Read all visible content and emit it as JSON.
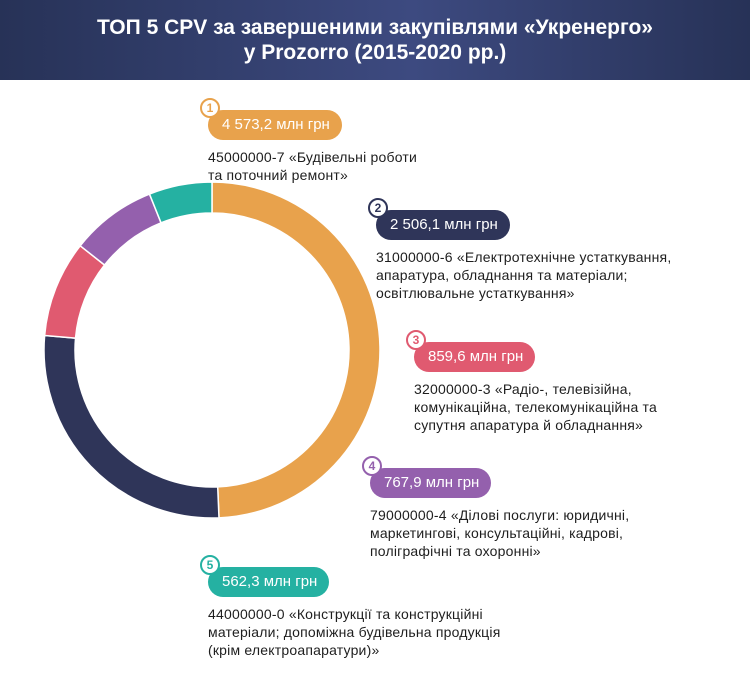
{
  "header": {
    "line1": "ТОП 5 CPV за завершеними закупівлями «Укренерго»",
    "line2": "у Prozorro (2015-2020 рр.)"
  },
  "chart_data": {
    "type": "pie",
    "variant": "donut",
    "title": "ТОП 5 CPV за завершеними закупівлями «Укренерго» у Prozorro (2015-2020 рр.)",
    "unit": "млн грн",
    "categories": [
      "1",
      "2",
      "3",
      "4",
      "5"
    ],
    "values": [
      4573.2,
      2506.1,
      859.6,
      767.9,
      562.3
    ],
    "colors": [
      "#e8a24c",
      "#2f3559",
      "#e05a70",
      "#9460ad",
      "#25b1a2"
    ]
  },
  "entries": [
    {
      "num": "1",
      "value": "4 573,2 млн грн",
      "desc_lines": [
        "45000000-7 «Будівельні роботи",
        "та поточний ремонт»"
      ],
      "color": "#e8a24c"
    },
    {
      "num": "2",
      "value": "2 506,1 млн грн",
      "desc_lines": [
        "31000000-6 «Електротехнічне устаткування,",
        "апаратура, обладнання та матеріали;",
        "освітлювальне устаткування»"
      ],
      "color": "#2f3559"
    },
    {
      "num": "3",
      "value": "859,6 млн грн",
      "desc_lines": [
        "32000000-3 «Радіо-, телевізійна,",
        "комунікаційна, телекомунікаційна та",
        "супутня апаратура й обладнання»"
      ],
      "color": "#e05a70"
    },
    {
      "num": "4",
      "value": "767,9 млн грн",
      "desc_lines": [
        "79000000-4 «Ділові послуги: юридичні,",
        "маркетингові, консультаційні, кадрові,",
        "поліграфічні та охоронні»"
      ],
      "color": "#9460ad"
    },
    {
      "num": "5",
      "value": "562,3 млн грн",
      "desc_lines": [
        "44000000-0 «Конструкції та конструкційні",
        "матеріали; допоміжна будівельна продукція",
        "(крім електроапаратури)»"
      ],
      "color": "#25b1a2"
    }
  ]
}
